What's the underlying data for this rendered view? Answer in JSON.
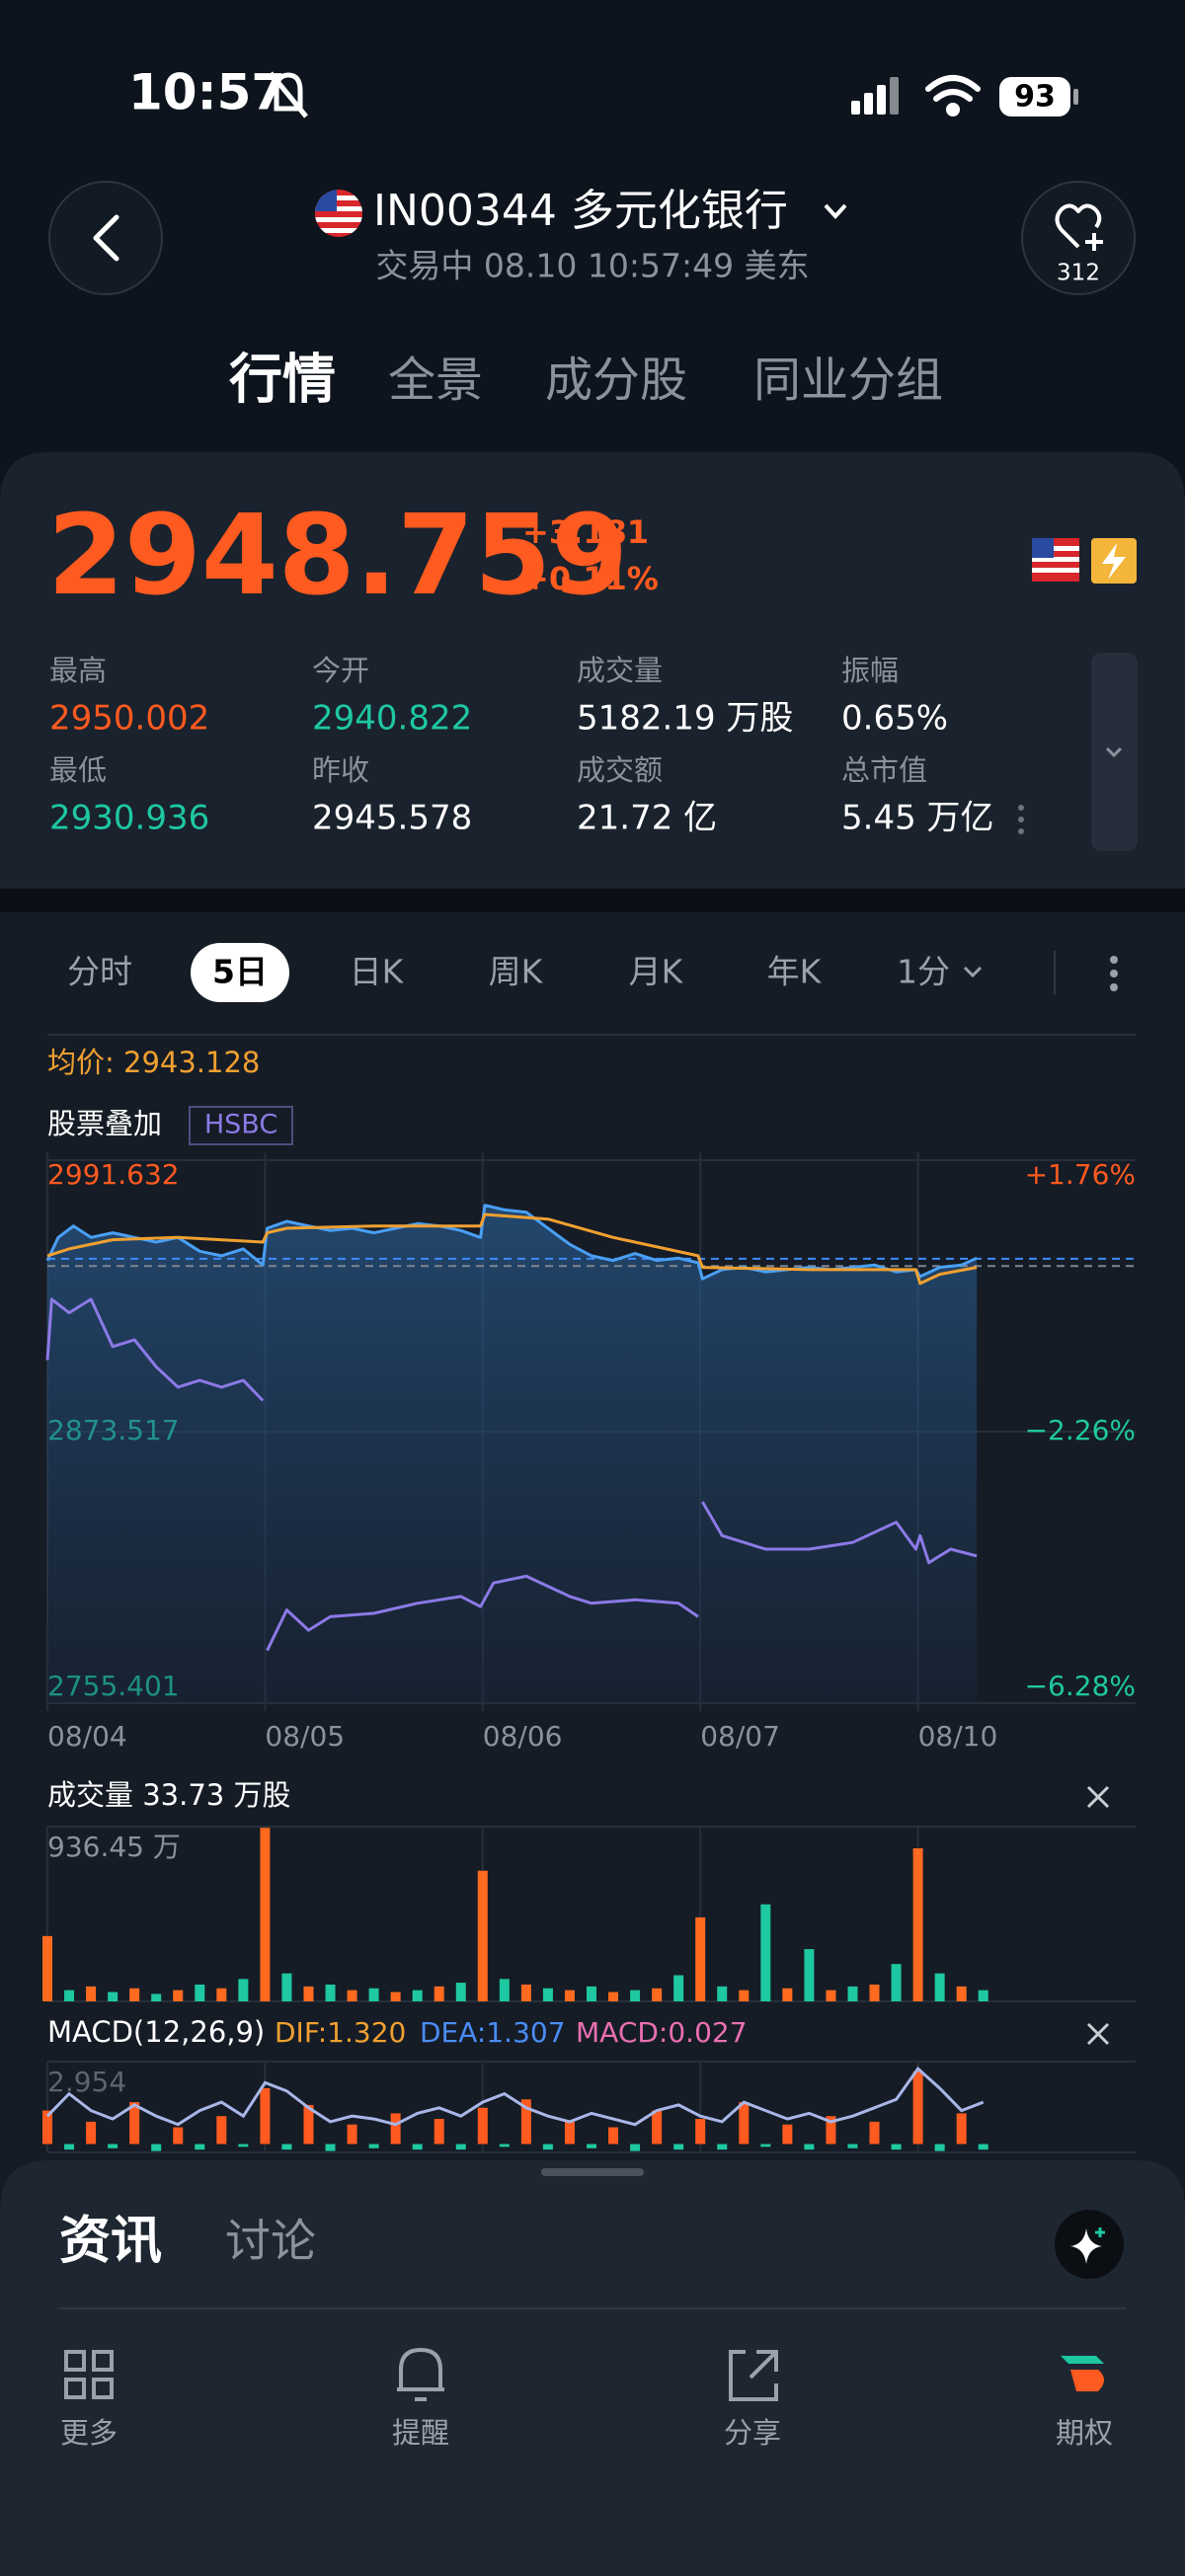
{
  "status_bar": {
    "time": "10:57",
    "battery": "93"
  },
  "header": {
    "title": "IN00344 多元化银行",
    "subtitle": "交易中 08.10 10:57:49 美东",
    "favorites": "312"
  },
  "tabs": [
    "行情",
    "全景",
    "成分股",
    "同业分组"
  ],
  "selected_tab": 0,
  "quote": {
    "price": "2948.759",
    "change": "+3.181",
    "change_pct": "+0.11%",
    "color": "#ff5a1f",
    "stats": [
      {
        "label": "最高",
        "value": "2950.002",
        "color": "#ff5a1f"
      },
      {
        "label": "今开",
        "value": "2940.822",
        "color": "#1ec8a0"
      },
      {
        "label": "成交量",
        "value": "5182.19 万股",
        "color": "#ffffff"
      },
      {
        "label": "振幅",
        "value": "0.65%",
        "color": "#ffffff"
      },
      {
        "label": "最低",
        "value": "2930.936",
        "color": "#1ec8a0"
      },
      {
        "label": "昨收",
        "value": "2945.578",
        "color": "#ffffff"
      },
      {
        "label": "成交额",
        "value": "21.72 亿",
        "color": "#ffffff"
      },
      {
        "label": "总市值",
        "value": "5.45 万亿",
        "color": "#ffffff"
      }
    ]
  },
  "periods": [
    "分时",
    "5日",
    "日K",
    "周K",
    "月K",
    "年K",
    "1分"
  ],
  "selected_period": 1,
  "chart_data": [
    {
      "type": "line",
      "avg_label": "均价: 2943.128",
      "overlay_label": "股票叠加",
      "xlim": [
        0,
        5
      ],
      "xticks": [
        {
          "value": 0,
          "label": "08/04"
        },
        {
          "value": 1,
          "label": "08/05"
        },
        {
          "value": 2,
          "label": "08/06"
        },
        {
          "value": 3,
          "label": "08/07"
        },
        {
          "value": 4,
          "label": "08/10"
        }
      ],
      "ylim": [
        2755.401,
        2991.632
      ],
      "yticks": [
        2755.401,
        2873.517,
        2991.632
      ],
      "y2lim": [
        -6.28,
        1.76
      ],
      "y2ticks": [
        {
          "value": -6.28,
          "label": "−6.28%"
        },
        {
          "value": -2.26,
          "label": "−2.26%"
        },
        {
          "value": 1.76,
          "label": "+1.76%"
        }
      ],
      "up_color": "#ff5a1f",
      "down_color": "#1ec8a0",
      "grid": true,
      "reference_lines": [
        {
          "value": 2945.578,
          "color": "#7d8590"
        },
        {
          "value": 2948.759,
          "color": "#3d8bfd"
        }
      ],
      "series": [
        {
          "color": "#4a9ff5",
          "area": true,
          "x": [
            0,
            0.05,
            0.12,
            0.2,
            0.3,
            0.4,
            0.5,
            0.6,
            0.7,
            0.8,
            0.9,
            0.99,
            1.01,
            1.1,
            1.2,
            1.3,
            1.4,
            1.5,
            1.6,
            1.7,
            1.8,
            1.9,
            1.99,
            2.01,
            2.1,
            2.2,
            2.3,
            2.4,
            2.5,
            2.6,
            2.7,
            2.8,
            2.9,
            2.99,
            3.01,
            3.1,
            3.2,
            3.3,
            3.4,
            3.5,
            3.6,
            3.7,
            3.8,
            3.9,
            3.99,
            4.01,
            4.1,
            4.2,
            4.27
          ],
          "values": [
            2948,
            2958,
            2963,
            2958,
            2960,
            2958,
            2956,
            2958,
            2952,
            2950,
            2953,
            2946,
            2962,
            2965,
            2963,
            2961,
            2962,
            2960,
            2962,
            2964,
            2963,
            2961,
            2958,
            2972,
            2970,
            2969,
            2962,
            2955,
            2950,
            2948,
            2951,
            2948,
            2949,
            2947,
            2940,
            2944,
            2945,
            2943,
            2944,
            2945,
            2944,
            2945,
            2946,
            2943,
            2944,
            2941,
            2945,
            2946,
            2949
          ]
        },
        {
          "color": "#f0a030",
          "x": [
            0,
            0.1,
            0.3,
            0.6,
            0.99,
            1.01,
            1.1,
            1.5,
            1.99,
            2.01,
            2.3,
            2.6,
            2.99,
            3.01,
            3.5,
            3.99,
            4.01,
            4.1,
            4.27
          ],
          "values": [
            2950,
            2953,
            2957,
            2958,
            2956,
            2960,
            2962,
            2963,
            2963,
            2968,
            2966,
            2958,
            2950,
            2945,
            2944,
            2944,
            2938,
            2942,
            2945
          ]
        },
        {
          "name": "HSBC",
          "color": "#8c7ae6",
          "axis": "y2",
          "x": [
            0,
            0.02,
            0.1,
            0.2,
            0.3,
            0.4,
            0.5,
            0.6,
            0.7,
            0.8,
            0.9,
            0.99,
            1.0,
            1.01,
            1.1,
            1.2,
            1.3,
            1.5,
            1.7,
            1.9,
            1.99,
            2.05,
            2.2,
            2.4,
            2.5,
            2.7,
            2.9,
            2.99,
            3.0,
            3.01,
            3.1,
            3.2,
            3.3,
            3.5,
            3.7,
            3.9,
            3.99,
            4.01,
            4.05,
            4.15,
            4.27
          ],
          "values": [
            -1.2,
            -0.3,
            -0.5,
            -0.3,
            -1.0,
            -0.9,
            -1.3,
            -1.6,
            -1.5,
            -1.6,
            -1.5,
            -1.8,
            null,
            -5.5,
            -4.9,
            -5.2,
            -5.0,
            -4.95,
            -4.8,
            -4.7,
            -4.85,
            -4.5,
            -4.4,
            -4.7,
            -4.8,
            -4.75,
            -4.8,
            -5.0,
            null,
            -3.3,
            -3.8,
            -3.9,
            -4.0,
            -4.0,
            -3.9,
            -3.6,
            -4.0,
            -3.8,
            -4.2,
            -4.0,
            -4.1
          ]
        }
      ]
    },
    {
      "type": "bar",
      "title": "成交量 33.73 万股",
      "xlim": [
        0,
        5
      ],
      "ylim": [
        0,
        936.45
      ],
      "yticks": [
        {
          "value": 936.45,
          "label": "936.45 万"
        }
      ],
      "series": [
        {
          "color": "#ff6a1f",
          "x": [
            0,
            0.2,
            0.4,
            0.6,
            0.8,
            1,
            1.2,
            1.4,
            1.6,
            1.8,
            2,
            2.2,
            2.4,
            2.6,
            2.8,
            3,
            3.2,
            3.4,
            3.6,
            3.8,
            4,
            4.2
          ],
          "values": [
            350,
            80,
            70,
            60,
            70,
            930,
            80,
            60,
            50,
            80,
            700,
            90,
            60,
            50,
            70,
            450,
            60,
            70,
            60,
            90,
            820,
            80
          ]
        },
        {
          "color": "#1ec8a0",
          "x": [
            0.1,
            0.3,
            0.5,
            0.7,
            0.9,
            1.1,
            1.3,
            1.5,
            1.7,
            1.9,
            2.1,
            2.3,
            2.5,
            2.7,
            2.9,
            3.1,
            3.3,
            3.5,
            3.7,
            3.9,
            4.1,
            4.3
          ],
          "values": [
            60,
            50,
            40,
            90,
            120,
            150,
            90,
            70,
            60,
            100,
            120,
            70,
            80,
            60,
            140,
            80,
            520,
            280,
            80,
            200,
            150,
            60
          ]
        }
      ]
    },
    {
      "type": "bar",
      "title": "MACD(12,26,9)",
      "legend": [
        {
          "label": "DIF:1.320",
          "color": "#f0a030"
        },
        {
          "label": "DEA:1.307",
          "color": "#4a8cf5"
        },
        {
          "label": "MACD:0.027",
          "color": "#e86fb0"
        }
      ],
      "xlim": [
        0,
        5
      ],
      "ylim": [
        -0.3,
        2.954
      ],
      "yticks": [
        2.954
      ],
      "series": [
        {
          "color": "#ff5a1f",
          "x": [
            0,
            0.2,
            0.4,
            0.6,
            0.8,
            1,
            1.2,
            1.4,
            1.6,
            1.8,
            2,
            2.2,
            2.4,
            2.6,
            2.8,
            3,
            3.2,
            3.4,
            3.6,
            3.8,
            4,
            4.2
          ],
          "values": [
            1.2,
            0.8,
            1.5,
            0.6,
            1.0,
            2.0,
            1.4,
            0.7,
            1.1,
            0.9,
            1.3,
            1.6,
            0.8,
            0.6,
            1.2,
            0.9,
            1.5,
            0.7,
            1.0,
            0.8,
            2.6,
            1.1
          ]
        },
        {
          "color": "#1ec8a0",
          "x": [
            0.1,
            0.3,
            0.5,
            0.7,
            0.9,
            1.1,
            1.3,
            1.5,
            1.7,
            1.9,
            2.1,
            2.3,
            2.5,
            2.7,
            2.9,
            3.1,
            3.3,
            3.5,
            3.7,
            3.9,
            4.1,
            4.3
          ],
          "values": [
            -0.2,
            -0.15,
            -0.25,
            -0.2,
            -0.1,
            -0.2,
            -0.25,
            -0.15,
            -0.2,
            -0.2,
            -0.1,
            -0.2,
            -0.15,
            -0.25,
            -0.2,
            -0.2,
            -0.1,
            -0.2,
            -0.15,
            -0.2,
            -0.25,
            -0.2
          ]
        },
        {
          "type": "line",
          "color": "#a9b6e8",
          "x": [
            0,
            0.1,
            0.2,
            0.3,
            0.4,
            0.5,
            0.6,
            0.7,
            0.8,
            0.9,
            1,
            1.1,
            1.2,
            1.3,
            1.4,
            1.5,
            1.6,
            1.7,
            1.8,
            1.9,
            2,
            2.1,
            2.2,
            2.3,
            2.4,
            2.5,
            2.6,
            2.7,
            2.8,
            2.9,
            3,
            3.1,
            3.2,
            3.3,
            3.4,
            3.5,
            3.6,
            3.7,
            3.8,
            3.9,
            4,
            4.1,
            4.2,
            4.3
          ],
          "values": [
            1.0,
            1.8,
            1.2,
            0.9,
            1.4,
            1.0,
            0.7,
            1.2,
            1.5,
            1.0,
            2.2,
            1.9,
            1.3,
            0.8,
            1.0,
            0.9,
            0.7,
            1.1,
            1.3,
            1.0,
            1.5,
            1.8,
            1.3,
            1.0,
            0.8,
            1.1,
            0.9,
            0.7,
            1.2,
            1.4,
            1.0,
            0.8,
            1.5,
            1.2,
            0.9,
            1.1,
            0.8,
            1.0,
            1.3,
            1.6,
            2.7,
            2.0,
            1.2,
            1.5
          ]
        }
      ]
    }
  ],
  "bottom": {
    "tabs": [
      "资讯",
      "讨论"
    ],
    "selected_tab": 0,
    "nav": [
      "更多",
      "提醒",
      "分享",
      "期权"
    ]
  }
}
